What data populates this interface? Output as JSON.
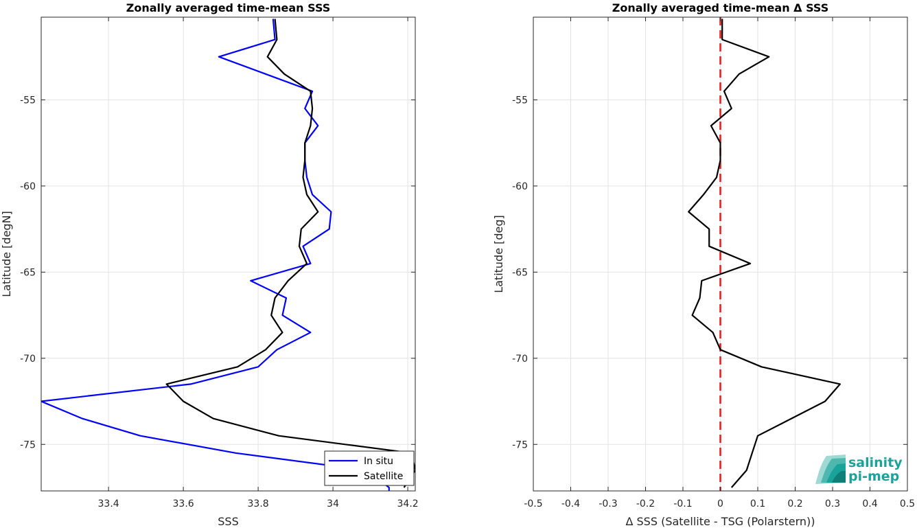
{
  "chart_data": [
    {
      "type": "line",
      "title": "Zonally averaged time-mean SSS",
      "xlabel": "SSS",
      "ylabel": "Latitude [degN]",
      "xlim": [
        33.22,
        34.22
      ],
      "ylim": [
        -77.7,
        -50.2
      ],
      "xticks": [
        33.4,
        33.6,
        33.8,
        34,
        34.2
      ],
      "xtick_labels": [
        "33.4",
        "33.6",
        "33.8",
        "34",
        "34.2"
      ],
      "yticks": [
        -75,
        -70,
        -65,
        -60,
        -55
      ],
      "ytick_labels": [
        "-75",
        "-70",
        "-65",
        "-60",
        "-55"
      ],
      "grid": true,
      "legend_position": "bottom-right",
      "series": [
        {
          "name": "In situ",
          "color": "#0000ff",
          "x": [
            33.84,
            33.845,
            33.695,
            33.82,
            33.945,
            33.925,
            33.96,
            33.925,
            33.925,
            33.93,
            33.945,
            33.995,
            33.99,
            33.92,
            33.94,
            33.78,
            33.875,
            33.865,
            33.94,
            33.85,
            33.8,
            33.62,
            33.22,
            33.33,
            33.485,
            33.74,
            34.09,
            34.15,
            34.15
          ],
          "y": [
            -50.3,
            -51.5,
            -52.5,
            -53.5,
            -54.5,
            -55.5,
            -56.5,
            -57.5,
            -58.5,
            -59.5,
            -60.5,
            -61.5,
            -62.5,
            -63.5,
            -64.5,
            -65.5,
            -66.5,
            -67.5,
            -68.5,
            -69.5,
            -70.5,
            -71.5,
            -72.5,
            -73.5,
            -74.5,
            -75.5,
            -76.5,
            -77.5,
            -77.7
          ]
        },
        {
          "name": "Satellite",
          "color": "#000000",
          "x": [
            33.845,
            33.85,
            33.825,
            33.87,
            33.94,
            33.945,
            33.94,
            33.925,
            33.925,
            33.92,
            33.93,
            33.96,
            33.915,
            33.91,
            33.93,
            33.88,
            33.845,
            33.835,
            33.865,
            33.82,
            33.745,
            33.555,
            33.6,
            33.68,
            33.855,
            34.21,
            34.22,
            34.19
          ],
          "y": [
            -50.3,
            -51.5,
            -52.5,
            -53.5,
            -54.5,
            -55.5,
            -56.5,
            -57.5,
            -58.5,
            -59.5,
            -60.5,
            -61.5,
            -62.5,
            -63.5,
            -64.5,
            -65.5,
            -66.5,
            -67.5,
            -68.5,
            -69.5,
            -70.5,
            -71.5,
            -72.5,
            -73.5,
            -74.5,
            -75.5,
            -76.5,
            -77.5
          ]
        }
      ]
    },
    {
      "type": "line",
      "title": "Zonally averaged time-mean Δ SSS",
      "xlabel": "Δ SSS (Satellite - TSG (Polarstern))",
      "ylabel": "Latitude [deg]",
      "xlim": [
        -0.5,
        0.5
      ],
      "ylim": [
        -77.7,
        -50.2
      ],
      "xticks": [
        -0.5,
        -0.4,
        -0.3,
        -0.2,
        -0.1,
        0,
        0.1,
        0.2,
        0.3,
        0.4,
        0.5
      ],
      "xtick_labels": [
        "-0.5",
        "-0.4",
        "-0.3",
        "-0.2",
        "-0.1",
        "0",
        "0.1",
        "0.2",
        "0.3",
        "0.4",
        "0.5"
      ],
      "yticks": [
        -75,
        -70,
        -65,
        -60,
        -55
      ],
      "ytick_labels": [
        "-75",
        "-70",
        "-65",
        "-60",
        "-55"
      ],
      "grid": true,
      "reference_line": {
        "x": 0,
        "color": "#e41a1c",
        "style": "dashed"
      },
      "series": [
        {
          "color": "#000000",
          "x": [
            0.005,
            0.005,
            0.13,
            0.05,
            0.01,
            0.03,
            -0.025,
            0.0,
            0.0,
            -0.01,
            -0.045,
            -0.085,
            -0.03,
            -0.03,
            0.08,
            -0.05,
            -0.055,
            -0.075,
            -0.02,
            0.0,
            0.11,
            0.32,
            0.28,
            0.19,
            0.1,
            0.085,
            0.07,
            0.03
          ],
          "y": [
            -50.3,
            -51.5,
            -52.5,
            -53.5,
            -54.5,
            -55.5,
            -56.5,
            -57.5,
            -58.5,
            -59.5,
            -60.5,
            -61.5,
            -62.5,
            -63.5,
            -64.5,
            -65.5,
            -66.5,
            -67.5,
            -68.5,
            -69.5,
            -70.5,
            -71.5,
            -72.5,
            -73.5,
            -74.5,
            -75.5,
            -76.5,
            -77.5
          ]
        }
      ]
    }
  ],
  "logo": {
    "line1": "salinity",
    "line2": "pi-mep",
    "color": "#1aa39b"
  }
}
